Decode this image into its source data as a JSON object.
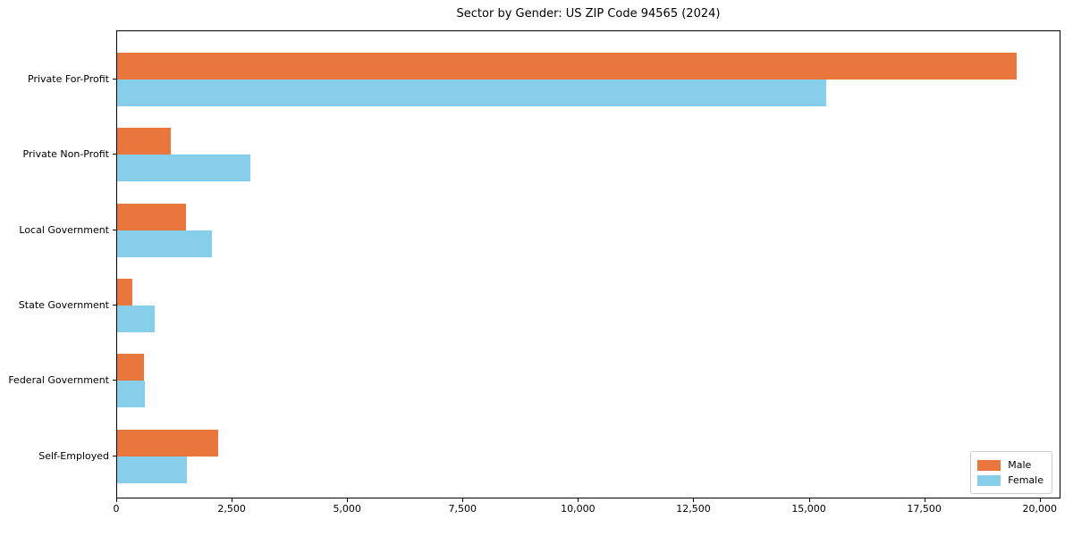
{
  "chart_data": {
    "type": "bar",
    "orientation": "horizontal",
    "title": "Sector by Gender: US ZIP Code 94565 (2024)",
    "categories": [
      "Private For-Profit",
      "Private Non-Profit",
      "Local Government",
      "State Government",
      "Federal Government",
      "Self-Employed"
    ],
    "series": [
      {
        "name": "Male",
        "color": "#e8763d",
        "values": [
          19480,
          1170,
          1500,
          320,
          580,
          2190
        ]
      },
      {
        "name": "Female",
        "color": "#87ceeb",
        "values": [
          15350,
          2880,
          2060,
          820,
          600,
          1520
        ]
      }
    ],
    "xlabel": "",
    "ylabel": "",
    "xlim": [
      0,
      20450
    ],
    "x_ticks": [
      0,
      2500,
      5000,
      7500,
      10000,
      12500,
      15000,
      17500,
      20000
    ],
    "x_tick_labels": [
      "0",
      "2,500",
      "5,000",
      "7,500",
      "10,000",
      "12,500",
      "15,000",
      "17,500",
      "20,000"
    ],
    "legend_position": "lower right",
    "grid": false,
    "background_color": "#ffffff",
    "spine_color": "#000000"
  }
}
